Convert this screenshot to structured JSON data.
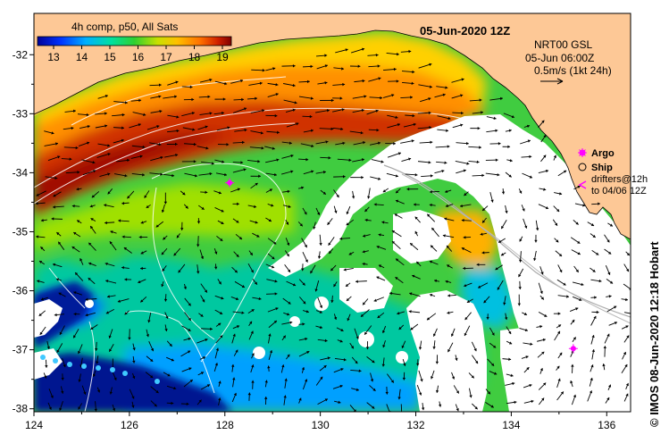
{
  "title": "05-Jun-2020 12Z",
  "colorbar": {
    "title": "4h comp, p50, All Sats",
    "ticks": [
      "13",
      "14",
      "15",
      "16",
      "17",
      "18",
      "19"
    ],
    "colors": [
      "#000099",
      "#0033ff",
      "#00b0ff",
      "#00e0a0",
      "#30d030",
      "#c8e000",
      "#ffc000",
      "#ff7000",
      "#d02000",
      "#800000"
    ]
  },
  "current_info": {
    "line1": "NRT00 GSL",
    "line2": "05-Jun 06:00Z",
    "line3": "0.5m/s (1kt 24h)"
  },
  "legend": {
    "argo": "Argo",
    "ship": "Ship",
    "drifters_line1": "drifters@12h",
    "drifters_line2": "to 04/06 12Z"
  },
  "axes": {
    "x_ticks": [
      "124",
      "126",
      "128",
      "130",
      "132",
      "134",
      "136"
    ],
    "y_ticks": [
      "-32",
      "-33",
      "-34",
      "-35",
      "-36",
      "-37",
      "-38"
    ],
    "x_range": [
      124,
      136.5
    ],
    "y_range": [
      -38.05,
      -31.3
    ]
  },
  "credit": "© IMOS 08-Jun-2020 12:18 Hobart",
  "colors": {
    "land": "#fdc896",
    "nodata": "#ffffff",
    "argo": "#ff00ff"
  },
  "argo_floats": [
    {
      "lon": 128.1,
      "lat": -34.17
    },
    {
      "lon": 135.3,
      "lat": -36.98
    }
  ]
}
